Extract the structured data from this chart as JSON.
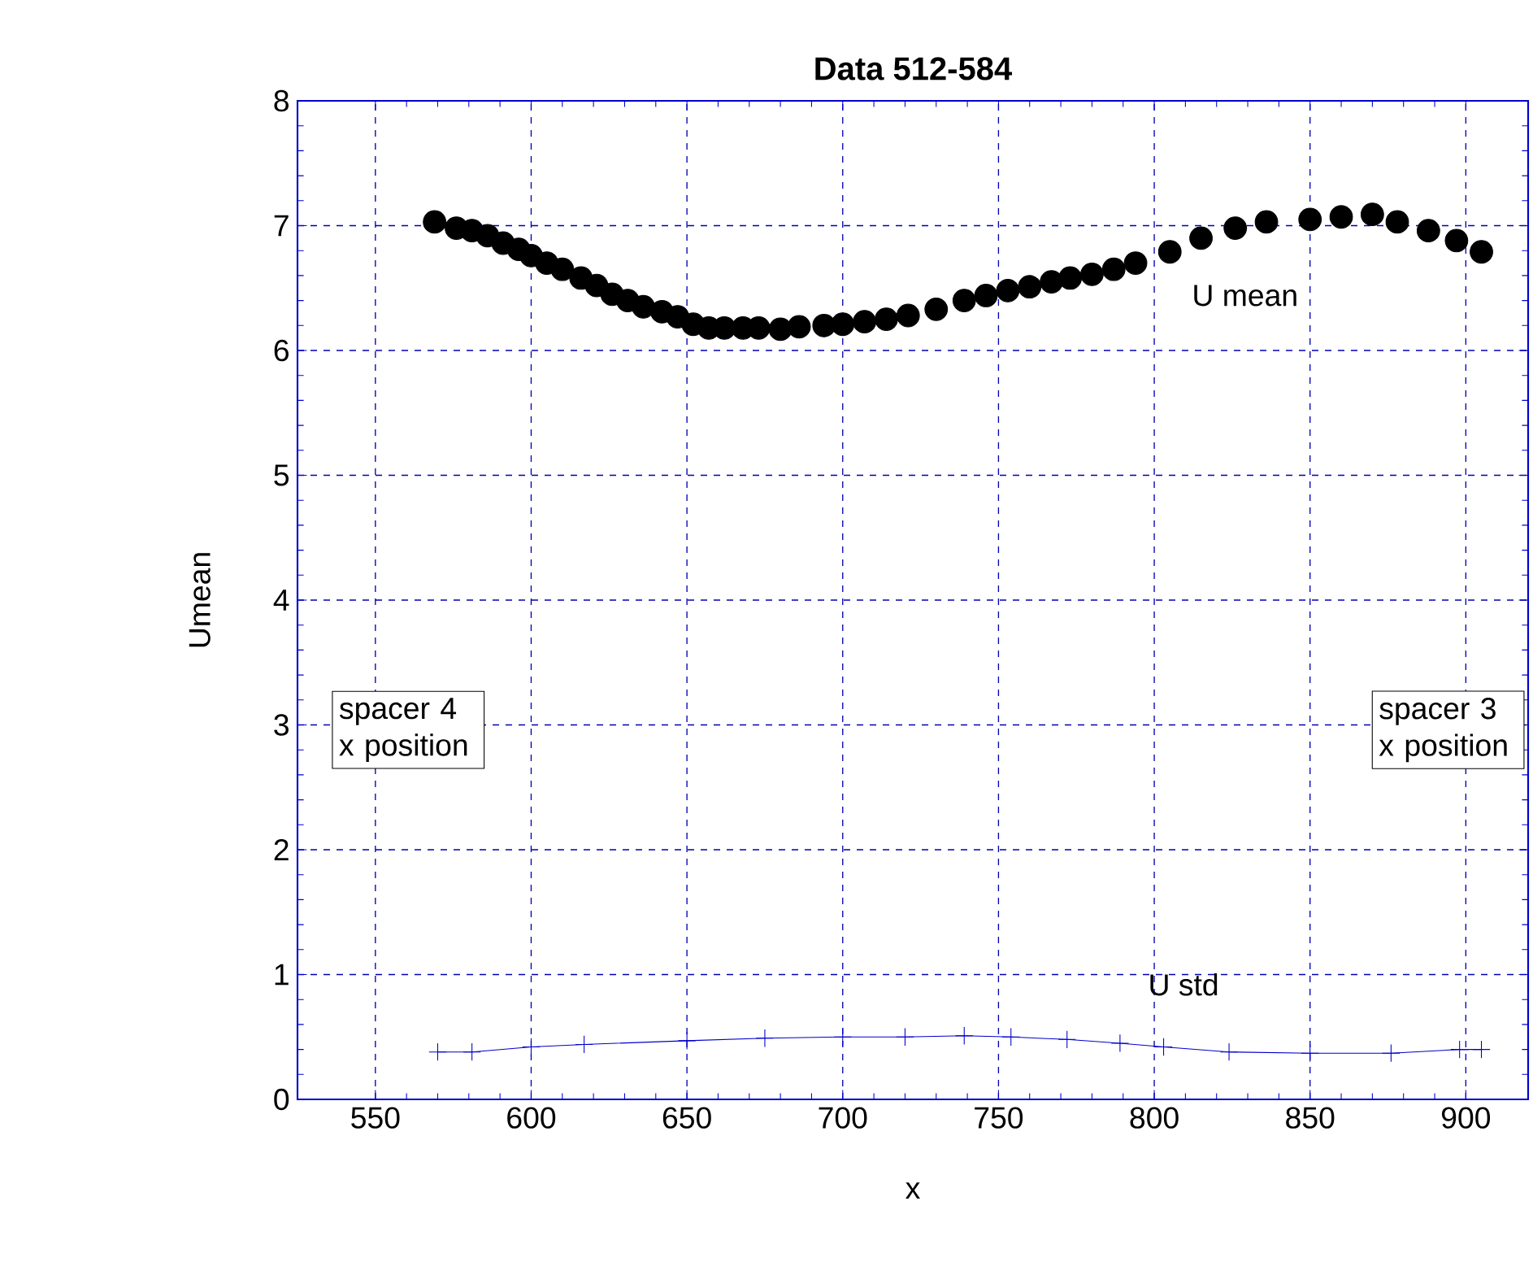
{
  "chart_data": {
    "type": "scatter",
    "title": "Data 512-584",
    "xlabel": "x",
    "ylabel": "Umean",
    "xlim": [
      525,
      920
    ],
    "xticks": [
      550,
      600,
      650,
      700,
      750,
      800,
      850,
      900
    ],
    "ylim": [
      0,
      8
    ],
    "yticks": [
      0,
      1,
      2,
      3,
      4,
      5,
      6,
      7,
      8
    ],
    "grid": true,
    "series": [
      {
        "color": "#000000",
        "marker": "circle",
        "line_style": "none",
        "x": [
          569,
          576,
          581,
          586,
          591,
          596,
          600,
          605,
          610,
          616,
          621,
          626,
          631,
          636,
          642,
          647,
          652,
          657,
          662,
          668,
          673,
          680,
          686,
          694,
          700,
          707,
          714,
          721,
          730,
          739,
          746,
          753,
          760,
          767,
          773,
          780,
          787,
          794,
          805,
          815,
          826,
          836,
          850,
          860,
          870,
          878,
          888,
          897,
          905
        ],
        "values": [
          7.03,
          6.98,
          6.96,
          6.92,
          6.86,
          6.81,
          6.76,
          6.7,
          6.65,
          6.58,
          6.52,
          6.45,
          6.4,
          6.35,
          6.31,
          6.27,
          6.21,
          6.18,
          6.18,
          6.18,
          6.18,
          6.17,
          6.19,
          6.2,
          6.21,
          6.23,
          6.25,
          6.28,
          6.33,
          6.4,
          6.44,
          6.48,
          6.51,
          6.55,
          6.58,
          6.61,
          6.65,
          6.7,
          6.79,
          6.9,
          6.98,
          7.03,
          7.05,
          7.07,
          7.09,
          7.03,
          6.96,
          6.88,
          6.79
        ]
      },
      {
        "color": "#0000cc",
        "marker": "cross",
        "line_style": "solid",
        "type": "line",
        "x": [
          570,
          581,
          600,
          617,
          650,
          675,
          700,
          720,
          739,
          754,
          772,
          789,
          803,
          824,
          850,
          876,
          898,
          905
        ],
        "values": [
          0.38,
          0.38,
          0.42,
          0.44,
          0.47,
          0.49,
          0.5,
          0.5,
          0.51,
          0.5,
          0.48,
          0.45,
          0.42,
          0.38,
          0.37,
          0.37,
          0.4,
          0.4
        ]
      }
    ],
    "annotations": [
      "U mean",
      "U std",
      "spacer 4 x position",
      "spacer 3 x position"
    ]
  }
}
